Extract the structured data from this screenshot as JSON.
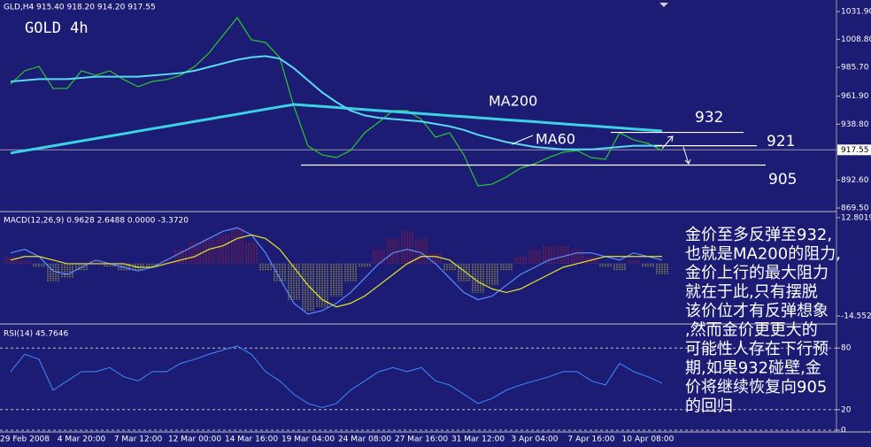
{
  "header": "GLD,H4  915.40 918.20 914.20 917.55",
  "chart_data": [
    {
      "type": "line",
      "title": "GOLD 4h",
      "categories": [
        null,
        "29 Feb 2008",
        null,
        null,
        null,
        "4 Mar 20:00",
        null,
        null,
        null,
        "7 Mar 12:00",
        null,
        null,
        null,
        "12 Mar 00:00",
        null,
        null,
        null,
        "14 Mar 16:00",
        null,
        null,
        null,
        "19 Mar 04:00",
        null,
        null,
        null,
        "24 Mar 08:00",
        null,
        null,
        null,
        "27 Mar 16:00",
        null,
        null,
        null,
        "31 Mar 12:00",
        null,
        null,
        null,
        "3 Apr 04:00",
        null,
        null,
        null,
        "7 Apr 16:00",
        null,
        null,
        null,
        "10 Apr 08:00",
        null
      ],
      "series": [
        {
          "color": "#2ec82e",
          "values": [
            971.9,
            982.9,
            986.5,
            968.3,
            968.3,
            982.9,
            979.2,
            982.9,
            975.6,
            969.7,
            974.1,
            975.6,
            979.2,
            986.5,
            997.5,
            1012.2,
            1026.8,
            1008.5,
            1006.3,
            993.9,
            953.6,
            920.7,
            913.4,
            911.2,
            917.0,
            931.7,
            940.5,
            950.0,
            950.0,
            942.7,
            928.0,
            931.7,
            913.4,
            887.8,
            889.2,
            895.1,
            902.4,
            906.1,
            911.2,
            915.6,
            917.0,
            911.2,
            909.7,
            931.7,
            925.8,
            922.9,
            917.0
          ]
        },
        {
          "name": "MA200",
          "color": "#3cd2e6",
          "values": [
            914.9,
            916.9,
            918.9,
            920.9,
            922.9,
            924.9,
            926.9,
            928.9,
            930.9,
            933.0,
            935.0,
            937.0,
            939.0,
            941.0,
            943.0,
            945.0,
            947.0,
            949.1,
            951.1,
            953.1,
            955.1,
            954.3,
            953.4,
            952.6,
            951.7,
            950.9,
            950.0,
            949.2,
            948.4,
            947.5,
            946.7,
            945.8,
            945.0,
            944.1,
            943.3,
            942.4,
            941.6,
            940.8,
            939.9,
            939.1,
            938.2,
            937.4,
            936.5,
            935.7,
            934.8,
            934.0,
            933.1
          ]
        },
        {
          "name": "MA60",
          "color": "#5ad8f0",
          "values": [
            974,
            975,
            976,
            976,
            976,
            977,
            978,
            978,
            978,
            978,
            979,
            980,
            981,
            983,
            986,
            989,
            992,
            994,
            995,
            993,
            985,
            975,
            965,
            957,
            950,
            946,
            944,
            943,
            942,
            941,
            939,
            937,
            934,
            930,
            927,
            924,
            922,
            920,
            919,
            918,
            918,
            918,
            919,
            920,
            921,
            921,
            921
          ]
        }
      ],
      "levels": [
        932,
        921,
        905
      ],
      "current": 917.55,
      "ylim": [
        867.3,
        1041.4
      ],
      "yticks": [
        {
          "value": 1031.9,
          "label": "1031.90"
        },
        {
          "value": 1008.8,
          "label": "1008.80"
        },
        {
          "value": 985.7,
          "label": "985.70"
        },
        {
          "value": 961.9,
          "label": "961.90"
        },
        {
          "value": 938.8,
          "label": "938.80"
        },
        {
          "value": 892.6,
          "label": "892.60"
        },
        {
          "value": 869.5,
          "label": "869.50"
        }
      ]
    },
    {
      "type": "macd",
      "title": "MACD(12,26,9) 0.9628 2.6488 0.0000 -3.3720",
      "series": [
        {
          "up_color": "#d01c1c",
          "down_color": "#e6e628",
          "values": [
            2,
            1,
            -1,
            -5,
            -4,
            -2,
            1,
            -1,
            -2,
            -2,
            -1,
            1,
            4,
            6,
            7,
            8,
            10,
            6,
            -2,
            -5,
            -10,
            -13,
            -12,
            -9,
            -5,
            -1,
            4,
            7,
            9,
            7,
            3,
            -2,
            -5,
            -8,
            -6,
            -2,
            2,
            4,
            5,
            5,
            4,
            2,
            -1,
            -2,
            1,
            -1,
            -3
          ]
        },
        {
          "color": "#5a8cff",
          "values": [
            3,
            4,
            2,
            -2,
            -3,
            -1,
            1,
            0,
            -1,
            -2,
            -1,
            1,
            3,
            5,
            7,
            9,
            10,
            8,
            3,
            -4,
            -11,
            -14,
            -13,
            -11,
            -8,
            -4,
            0,
            3,
            4,
            3,
            0,
            -4,
            -8,
            -10,
            -9,
            -6,
            -3,
            -1,
            1,
            2,
            3,
            3,
            2,
            1,
            3,
            2,
            1
          ]
        },
        {
          "color": "#e6e628",
          "values": [
            1,
            2,
            2,
            1,
            0,
            0,
            0,
            0,
            0,
            -1,
            -1,
            0,
            1,
            2,
            4,
            5,
            7,
            8,
            7,
            4,
            -1,
            -6,
            -10,
            -12,
            -11,
            -9,
            -6,
            -3,
            0,
            2,
            2,
            1,
            -2,
            -5,
            -7,
            -8,
            -7,
            -5,
            -3,
            -1,
            0,
            1,
            2,
            2,
            2,
            2,
            2
          ]
        }
      ],
      "ylim": [
        -16.5,
        14.0
      ],
      "yticks": [
        12.8019,
        -14.552
      ]
    },
    {
      "type": "rsi",
      "title": "RSI(14) 45.7646",
      "series": [
        {
          "color": "#3c8cff",
          "values": [
            57,
            74,
            69,
            39,
            48,
            57,
            57,
            61,
            52,
            48,
            57,
            57,
            65,
            69,
            74,
            78,
            82,
            74,
            57,
            48,
            35,
            26,
            22,
            26,
            39,
            48,
            57,
            61,
            57,
            61,
            48,
            44,
            35,
            26,
            31,
            39,
            44,
            48,
            52,
            57,
            57,
            48,
            44,
            65,
            57,
            52,
            45.7646
          ]
        }
      ],
      "ylim": [
        0,
        100
      ],
      "yticks": [
        0,
        20,
        80
      ]
    }
  ],
  "note": {
    "lines": [
      "金价至多反弹至932,",
      "也就是MA200的阻力,",
      "金价上行的最大阻力",
      "就在于此,只有摆脱",
      "该价位才有反弹想象",
      ",然而金价更更大的",
      "可能性人存在下行预",
      "期,如果932碰壁,金",
      "价将继续恢复向905",
      "的回归"
    ]
  }
}
